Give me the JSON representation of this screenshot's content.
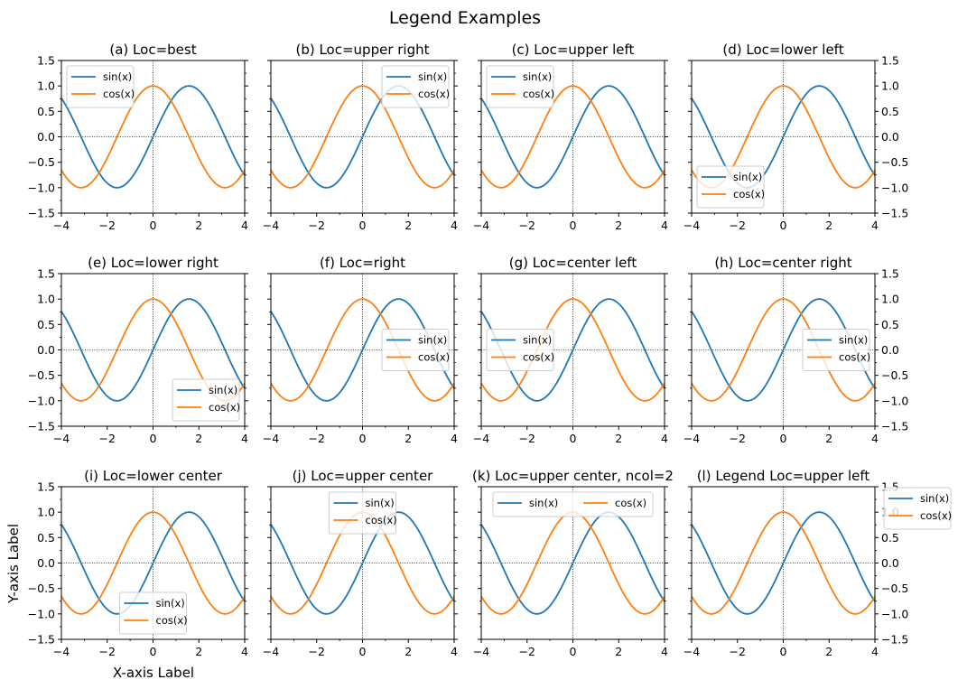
{
  "figure": {
    "suptitle": "Legend Examples",
    "xlabel": "X-axis Label",
    "ylabel": "Y-axis Label"
  },
  "colors": {
    "sin": "#1f77b4",
    "cos": "#ff7f0e",
    "refline": "#000000"
  },
  "chart_data": {
    "type": "line",
    "function_series": [
      {
        "name": "sin(x)",
        "function": "sin",
        "color": "#1f77b4"
      },
      {
        "name": "cos(x)",
        "function": "cos",
        "color": "#ff7f0e"
      }
    ],
    "x_range": [
      -4,
      4
    ],
    "xlim": [
      -4,
      4
    ],
    "ylim": [
      -1.5,
      1.5
    ],
    "xticks": [
      -4,
      -2,
      0,
      2,
      4
    ],
    "xtick_labels": [
      "−4",
      "−2",
      "0",
      "2",
      "4"
    ],
    "yticks": [
      -1.5,
      -1.0,
      -0.5,
      0.0,
      0.5,
      1.0,
      1.5
    ],
    "ytick_labels": [
      "−1.5",
      "−1.0",
      "−0.5",
      "0.0",
      "0.5",
      "1.0",
      "1.5"
    ],
    "reference_lines": {
      "x": 0,
      "y": 0,
      "style": "dotted"
    },
    "panels": [
      {
        "id": "a",
        "title": "(a) Loc=best",
        "legend_loc": "upper left",
        "ncol": 1
      },
      {
        "id": "b",
        "title": "(b) Loc=upper right",
        "legend_loc": "upper right",
        "ncol": 1
      },
      {
        "id": "c",
        "title": "(c) Loc=upper left",
        "legend_loc": "upper left",
        "ncol": 1
      },
      {
        "id": "d",
        "title": "(d) Loc=lower left",
        "legend_loc": "lower left",
        "ncol": 1
      },
      {
        "id": "e",
        "title": "(e) Loc=lower right",
        "legend_loc": "lower right",
        "ncol": 1
      },
      {
        "id": "f",
        "title": "(f) Loc=right",
        "legend_loc": "center right",
        "ncol": 1
      },
      {
        "id": "g",
        "title": "(g) Loc=center left",
        "legend_loc": "center left",
        "ncol": 1
      },
      {
        "id": "h",
        "title": "(h) Loc=center right",
        "legend_loc": "center right",
        "ncol": 1
      },
      {
        "id": "i",
        "title": "(i) Loc=lower center",
        "legend_loc": "lower center",
        "ncol": 1
      },
      {
        "id": "j",
        "title": "(j) Loc=upper center",
        "legend_loc": "upper center",
        "ncol": 1
      },
      {
        "id": "k",
        "title": "(k) Loc=upper center, ncol=2",
        "legend_loc": "upper center",
        "ncol": 2
      },
      {
        "id": "l",
        "title": "(l) Legend Loc=upper left",
        "legend_loc": "outside upper left",
        "ncol": 1
      }
    ]
  }
}
